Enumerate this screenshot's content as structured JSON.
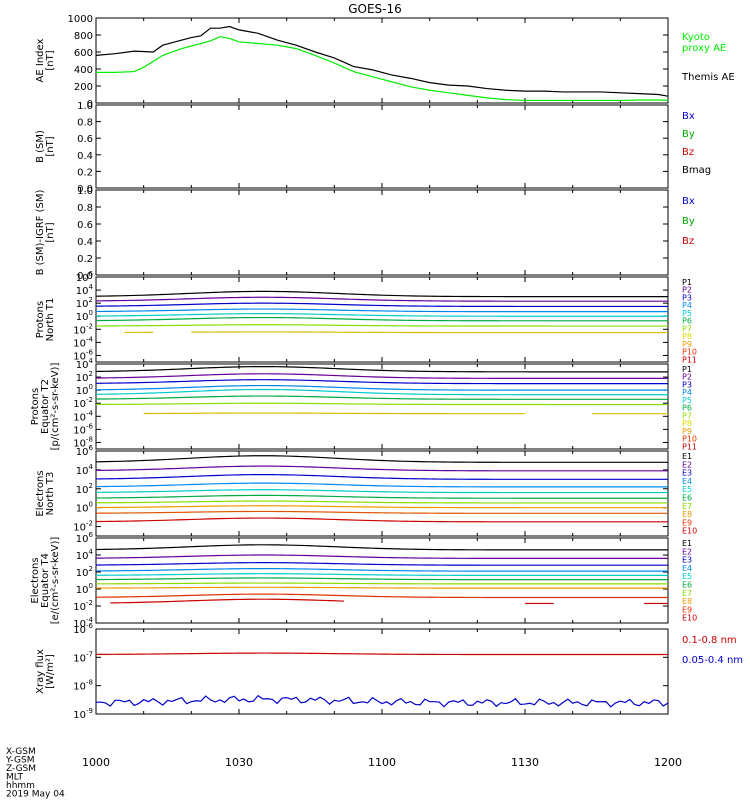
{
  "title": "GOES-16",
  "footer": {
    "labels": [
      "X-GSM",
      "Y-GSM",
      "Z-GSM",
      "MLT",
      "hhmm",
      "2019 May 04"
    ]
  },
  "x_ticks": [
    "1000",
    "1030",
    "1100",
    "1130",
    "1200"
  ],
  "chart_data": [
    {
      "type": "line",
      "ylabel": [
        "AE Index",
        "[nT]"
      ],
      "ylim": [
        0,
        1000
      ],
      "y_ticks": [
        "0",
        "200",
        "400",
        "600",
        "800",
        "1000"
      ],
      "x_range_minutes": [
        600,
        720
      ],
      "legend": [
        {
          "text": "Kyoto",
          "color": "#00ee00"
        },
        {
          "text": "proxy AE",
          "color": "#00ee00"
        },
        {
          "text": "Themis AE",
          "color": "#000000"
        }
      ],
      "series": [
        {
          "name": "Themis AE",
          "color": "#000000",
          "points": [
            [
              600,
              560
            ],
            [
              604,
              580
            ],
            [
              608,
              610
            ],
            [
              612,
              600
            ],
            [
              614,
              680
            ],
            [
              618,
              740
            ],
            [
              620,
              770
            ],
            [
              622,
              790
            ],
            [
              624,
              880
            ],
            [
              626,
              880
            ],
            [
              628,
              900
            ],
            [
              630,
              860
            ],
            [
              634,
              820
            ],
            [
              638,
              740
            ],
            [
              642,
              680
            ],
            [
              646,
              600
            ],
            [
              650,
              530
            ],
            [
              654,
              430
            ],
            [
              658,
              390
            ],
            [
              662,
              330
            ],
            [
              666,
              290
            ],
            [
              670,
              240
            ],
            [
              674,
              210
            ],
            [
              678,
              200
            ],
            [
              682,
              170
            ],
            [
              686,
              150
            ],
            [
              690,
              140
            ],
            [
              694,
              140
            ],
            [
              698,
              130
            ],
            [
              702,
              130
            ],
            [
              706,
              130
            ],
            [
              710,
              120
            ],
            [
              714,
              110
            ],
            [
              718,
              100
            ],
            [
              720,
              80
            ]
          ]
        },
        {
          "name": "Kyoto proxy AE",
          "color": "#00ee00",
          "points": [
            [
              600,
              360
            ],
            [
              604,
              360
            ],
            [
              608,
              370
            ],
            [
              610,
              420
            ],
            [
              614,
              560
            ],
            [
              618,
              640
            ],
            [
              622,
              700
            ],
            [
              624,
              730
            ],
            [
              626,
              780
            ],
            [
              628,
              760
            ],
            [
              630,
              720
            ],
            [
              634,
              700
            ],
            [
              638,
              680
            ],
            [
              642,
              640
            ],
            [
              646,
              560
            ],
            [
              650,
              470
            ],
            [
              654,
              370
            ],
            [
              658,
              310
            ],
            [
              662,
              250
            ],
            [
              666,
              190
            ],
            [
              670,
              150
            ],
            [
              674,
              120
            ],
            [
              678,
              90
            ],
            [
              682,
              60
            ],
            [
              686,
              40
            ],
            [
              690,
              30
            ],
            [
              694,
              30
            ],
            [
              698,
              30
            ],
            [
              702,
              30
            ],
            [
              706,
              30
            ],
            [
              710,
              30
            ],
            [
              714,
              35
            ],
            [
              718,
              35
            ],
            [
              720,
              30
            ]
          ]
        }
      ]
    },
    {
      "type": "line",
      "ylabel": [
        "B (SM)",
        "[nT]"
      ],
      "ylim": [
        0,
        1
      ],
      "y_ticks": [
        "0.0",
        "0.2",
        "0.4",
        "0.6",
        "0.8",
        "1.0"
      ],
      "legend": [
        {
          "text": "Bx",
          "color": "#0000cc"
        },
        {
          "text": "By",
          "color": "#00aa00"
        },
        {
          "text": "Bz",
          "color": "#cc0000"
        },
        {
          "text": "Bmag",
          "color": "#000000"
        }
      ],
      "series": []
    },
    {
      "type": "line",
      "ylabel": [
        "B (SM)-IGRF (SM)",
        "[nT]"
      ],
      "ylim": [
        0,
        1
      ],
      "y_ticks": [
        "0.0",
        "0.2",
        "0.4",
        "0.6",
        "0.8",
        "1.0"
      ],
      "legend": [
        {
          "text": "Bx",
          "color": "#0000cc"
        },
        {
          "text": "By",
          "color": "#00aa00"
        },
        {
          "text": "Bz",
          "color": "#cc0000"
        }
      ],
      "series": []
    },
    {
      "type": "line",
      "log": true,
      "ylabel": [
        "Protons",
        "North T1"
      ],
      "ylim_exp": [
        -7,
        6
      ],
      "y_ticks": [
        {
          "base": "10",
          "exp": "6",
          "v": 6
        },
        {
          "base": "10",
          "exp": "4",
          "v": 4
        },
        {
          "base": "10",
          "exp": "2",
          "v": 2
        },
        {
          "base": "10",
          "exp": "0",
          "v": 0
        },
        {
          "base": "10",
          "exp": "-2",
          "v": -2
        },
        {
          "base": "10",
          "exp": "-4",
          "v": -4
        },
        {
          "base": "10",
          "exp": "-6",
          "v": -6
        }
      ],
      "legend": [
        {
          "text": "P1",
          "color": "#000000"
        },
        {
          "text": "P2",
          "color": "#660099"
        },
        {
          "text": "P3",
          "color": "#0000cc"
        },
        {
          "text": "P4",
          "color": "#0088ee"
        },
        {
          "text": "P5",
          "color": "#00cccc"
        },
        {
          "text": "P6",
          "color": "#00aa44"
        },
        {
          "text": "P7",
          "color": "#88dd00"
        },
        {
          "text": "P8",
          "color": "#dddd00"
        },
        {
          "text": "P9",
          "color": "#ee9900"
        },
        {
          "text": "P10",
          "color": "#ee3300"
        },
        {
          "text": "P11",
          "color": "#cc0000"
        }
      ],
      "series": [
        {
          "name": "P1",
          "color": "#000000",
          "base": 3.0,
          "amp": 0.8
        },
        {
          "name": "P2",
          "color": "#660099",
          "base": 2.3,
          "amp": 0.6
        },
        {
          "name": "P3",
          "color": "#0000cc",
          "base": 1.5,
          "amp": 0.5
        },
        {
          "name": "P4",
          "color": "#0088ee",
          "base": 0.7,
          "amp": 0.4
        },
        {
          "name": "P5",
          "color": "#00cccc",
          "base": 0.0,
          "amp": 0.4
        },
        {
          "name": "P6",
          "color": "#00aa44",
          "base": -0.7,
          "amp": 0.5
        },
        {
          "name": "P7",
          "color": "#88dd00",
          "base": -1.5,
          "amp": 0.2
        },
        {
          "name": "P8",
          "color": "#ddbb00",
          "base": -2.5,
          "amp": 0.1,
          "segments": [
            [
              606,
              612
            ],
            [
              620,
              720
            ]
          ]
        }
      ]
    },
    {
      "type": "line",
      "log": true,
      "ylabel": [
        "Protons",
        "Equator T2",
        "[p/(cm²-s-sr-keV)]"
      ],
      "ylim_exp": [
        -9,
        4
      ],
      "y_ticks": [
        {
          "base": "10",
          "exp": "4",
          "v": 4
        },
        {
          "base": "10",
          "exp": "2",
          "v": 2
        },
        {
          "base": "10",
          "exp": "0",
          "v": 0
        },
        {
          "base": "10",
          "exp": "-2",
          "v": -2
        },
        {
          "base": "10",
          "exp": "-4",
          "v": -4
        },
        {
          "base": "10",
          "exp": "-6",
          "v": -6
        },
        {
          "base": "10",
          "exp": "-8",
          "v": -8
        }
      ],
      "legend": [
        {
          "text": "P1",
          "color": "#000000"
        },
        {
          "text": "P2",
          "color": "#660099"
        },
        {
          "text": "P3",
          "color": "#0000cc"
        },
        {
          "text": "P4",
          "color": "#0088ee"
        },
        {
          "text": "P5",
          "color": "#00cccc"
        },
        {
          "text": "P6",
          "color": "#00aa44"
        },
        {
          "text": "P7",
          "color": "#88dd00"
        },
        {
          "text": "P8",
          "color": "#dddd00"
        },
        {
          "text": "P9",
          "color": "#ee9900"
        },
        {
          "text": "P10",
          "color": "#ee3300"
        },
        {
          "text": "P11",
          "color": "#cc0000"
        }
      ],
      "series": [
        {
          "name": "P1",
          "color": "#000000",
          "base": 2.8,
          "amp": 0.8
        },
        {
          "name": "P2",
          "color": "#660099",
          "base": 1.8,
          "amp": 0.7
        },
        {
          "name": "P3",
          "color": "#0000cc",
          "base": 1.0,
          "amp": 0.6
        },
        {
          "name": "P4",
          "color": "#0088ee",
          "base": 0.0,
          "amp": 0.7
        },
        {
          "name": "P5",
          "color": "#00cccc",
          "base": -0.7,
          "amp": 0.8
        },
        {
          "name": "P6",
          "color": "#00aa44",
          "base": -1.4,
          "amp": 0.5
        },
        {
          "name": "P7",
          "color": "#88dd00",
          "base": -2.2,
          "amp": 0.2
        },
        {
          "name": "P8",
          "color": "#ddbb00",
          "base": -3.6,
          "amp": 0.1,
          "segments": [
            [
              610,
              690
            ],
            [
              704,
              720
            ]
          ]
        }
      ]
    },
    {
      "type": "line",
      "log": true,
      "ylabel": [
        "Electrons",
        "North T3"
      ],
      "ylim_exp": [
        -3,
        6
      ],
      "y_ticks": [
        {
          "base": "10",
          "exp": "6",
          "v": 6
        },
        {
          "base": "10",
          "exp": "4",
          "v": 4
        },
        {
          "base": "10",
          "exp": "2",
          "v": 2
        },
        {
          "base": "10",
          "exp": "0",
          "v": 0
        },
        {
          "base": "10",
          "exp": "-2",
          "v": -2
        }
      ],
      "legend": [
        {
          "text": "E1",
          "color": "#000000"
        },
        {
          "text": "E2",
          "color": "#660099"
        },
        {
          "text": "E3",
          "color": "#0000cc"
        },
        {
          "text": "E4",
          "color": "#0088ee"
        },
        {
          "text": "E5",
          "color": "#00cccc"
        },
        {
          "text": "E6",
          "color": "#00aa44"
        },
        {
          "text": "E7",
          "color": "#88dd00"
        },
        {
          "text": "E8",
          "color": "#ee9900"
        },
        {
          "text": "E9",
          "color": "#ee3300"
        },
        {
          "text": "E10",
          "color": "#cc0000"
        }
      ],
      "series": [
        {
          "name": "E1",
          "color": "#000000",
          "base": 4.8,
          "amp": 0.7
        },
        {
          "name": "E2",
          "color": "#660099",
          "base": 3.9,
          "amp": 0.5
        },
        {
          "name": "E3",
          "color": "#0000cc",
          "base": 3.0,
          "amp": 0.5
        },
        {
          "name": "E4",
          "color": "#0088ee",
          "base": 2.2,
          "amp": 0.4
        },
        {
          "name": "E5",
          "color": "#00cccc",
          "base": 1.6,
          "amp": 0.3
        },
        {
          "name": "E6",
          "color": "#00aa44",
          "base": 1.0,
          "amp": 0.3
        },
        {
          "name": "E7",
          "color": "#88dd00",
          "base": 0.5,
          "amp": 0.2
        },
        {
          "name": "E8",
          "color": "#ee9900",
          "base": 0.0,
          "amp": 0.2
        },
        {
          "name": "E9",
          "color": "#dd5500",
          "base": -0.6,
          "amp": 0.2
        },
        {
          "name": "E10",
          "color": "#cc0000",
          "base": -1.5,
          "amp": 0.4
        }
      ]
    },
    {
      "type": "line",
      "log": true,
      "ylabel": [
        "Electrons",
        "Equator T4",
        "[e/(cm²-s-sr-keV)]"
      ],
      "ylim_exp": [
        -4,
        6
      ],
      "y_ticks": [
        {
          "base": "10",
          "exp": "6",
          "v": 6
        },
        {
          "base": "10",
          "exp": "4",
          "v": 4
        },
        {
          "base": "10",
          "exp": "2",
          "v": 2
        },
        {
          "base": "10",
          "exp": "0",
          "v": 0
        },
        {
          "base": "10",
          "exp": "-2",
          "v": -2
        },
        {
          "base": "10",
          "exp": "-4",
          "v": -4
        }
      ],
      "legend": [
        {
          "text": "E1",
          "color": "#000000"
        },
        {
          "text": "E2",
          "color": "#660099"
        },
        {
          "text": "E3",
          "color": "#0000cc"
        },
        {
          "text": "E4",
          "color": "#0088ee"
        },
        {
          "text": "E5",
          "color": "#00cccc"
        },
        {
          "text": "E6",
          "color": "#00aa44"
        },
        {
          "text": "E7",
          "color": "#88dd00"
        },
        {
          "text": "E8",
          "color": "#ee9900"
        },
        {
          "text": "E9",
          "color": "#ee3300"
        },
        {
          "text": "E10",
          "color": "#cc0000"
        }
      ],
      "series": [
        {
          "name": "E1",
          "color": "#000000",
          "base": 4.6,
          "amp": 0.6
        },
        {
          "name": "E2",
          "color": "#660099",
          "base": 3.6,
          "amp": 0.4
        },
        {
          "name": "E3",
          "color": "#0000cc",
          "base": 2.8,
          "amp": 0.3
        },
        {
          "name": "E4",
          "color": "#0088ee",
          "base": 2.1,
          "amp": 0.3
        },
        {
          "name": "E5",
          "color": "#00cccc",
          "base": 1.6,
          "amp": 0.2
        },
        {
          "name": "E6",
          "color": "#00aa44",
          "base": 1.1,
          "amp": 0.2
        },
        {
          "name": "E7",
          "color": "#88dd00",
          "base": 0.6,
          "amp": 0.1
        },
        {
          "name": "E8",
          "color": "#ee9900",
          "base": 0.1,
          "amp": 0.1
        },
        {
          "name": "E9",
          "color": "#dd3300",
          "base": -1.0,
          "amp": 0.4
        },
        {
          "name": "E10",
          "color": "#cc0000",
          "base": -1.7,
          "amp": 0.5,
          "segments": [
            [
              603,
              652
            ],
            [
              690,
              696
            ],
            [
              715,
              720
            ]
          ]
        }
      ]
    },
    {
      "type": "line",
      "log": true,
      "ylabel": [
        "Xray flux",
        "[W/m²]"
      ],
      "ylim_exp": [
        -9,
        -6
      ],
      "y_ticks": [
        {
          "base": "10",
          "exp": "-6",
          "v": -6
        },
        {
          "base": "10",
          "exp": "-7",
          "v": -7
        },
        {
          "base": "10",
          "exp": "-8",
          "v": -8
        },
        {
          "base": "10",
          "exp": "-9",
          "v": -9
        }
      ],
      "legend": [
        {
          "text": "0.1-0.8 nm",
          "color": "#cc0000"
        },
        {
          "text": "0.05-0.4 nm",
          "color": "#0000cc"
        }
      ],
      "series": [
        {
          "name": "0.1-0.8 nm",
          "color": "#cc0000",
          "base": -6.9,
          "amp": 0.05
        },
        {
          "name": "0.05-0.4 nm",
          "color": "#0000cc",
          "base": -8.6,
          "amp": 0.12,
          "noise": 0.15
        }
      ]
    }
  ]
}
